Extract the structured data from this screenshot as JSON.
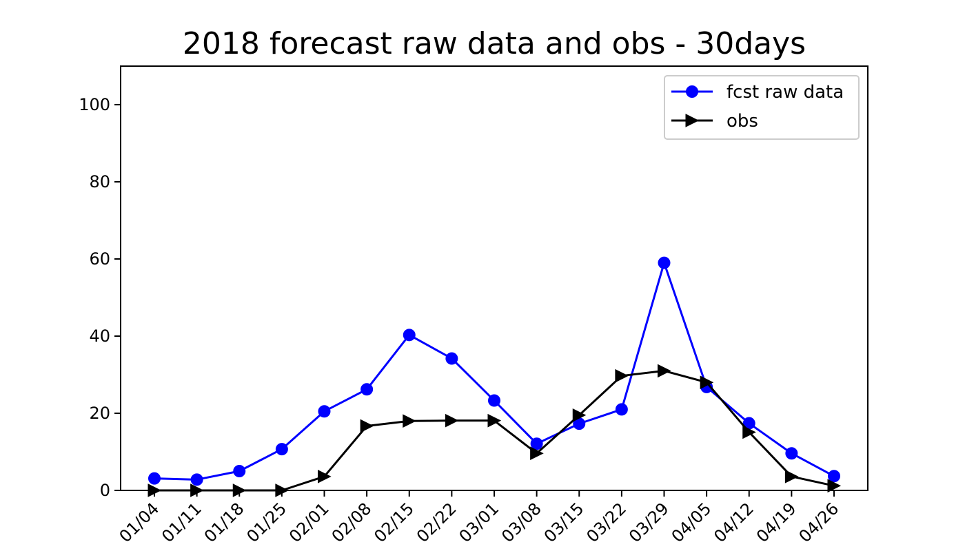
{
  "chart_data": {
    "type": "line",
    "title": "2018 forecast raw data and obs - 30days",
    "xlabel": "",
    "ylabel": "",
    "categories": [
      "01/04",
      "01/11",
      "01/18",
      "01/25",
      "02/01",
      "02/08",
      "02/15",
      "02/22",
      "03/01",
      "03/08",
      "03/15",
      "03/22",
      "03/29",
      "04/05",
      "04/12",
      "04/19",
      "04/26"
    ],
    "ylim": [
      0,
      110
    ],
    "yticks": [
      0,
      20,
      40,
      60,
      80,
      100
    ],
    "grid": false,
    "legend_position": "top-right",
    "series": [
      {
        "name": "fcst raw data",
        "color": "#0000ff",
        "marker": "circle",
        "values": [
          3.1,
          2.8,
          5.0,
          10.7,
          20.5,
          26.2,
          40.3,
          34.2,
          23.3,
          12.1,
          17.3,
          21.0,
          59.0,
          26.8,
          17.4,
          9.6,
          3.7
        ]
      },
      {
        "name": "obs",
        "color": "#000000",
        "marker": "triangle-right",
        "values": [
          0.0,
          0.0,
          0.0,
          0.0,
          3.6,
          16.7,
          18.0,
          18.1,
          18.1,
          9.6,
          19.5,
          29.7,
          31.0,
          28.0,
          15.1,
          3.6,
          1.2
        ]
      }
    ]
  }
}
